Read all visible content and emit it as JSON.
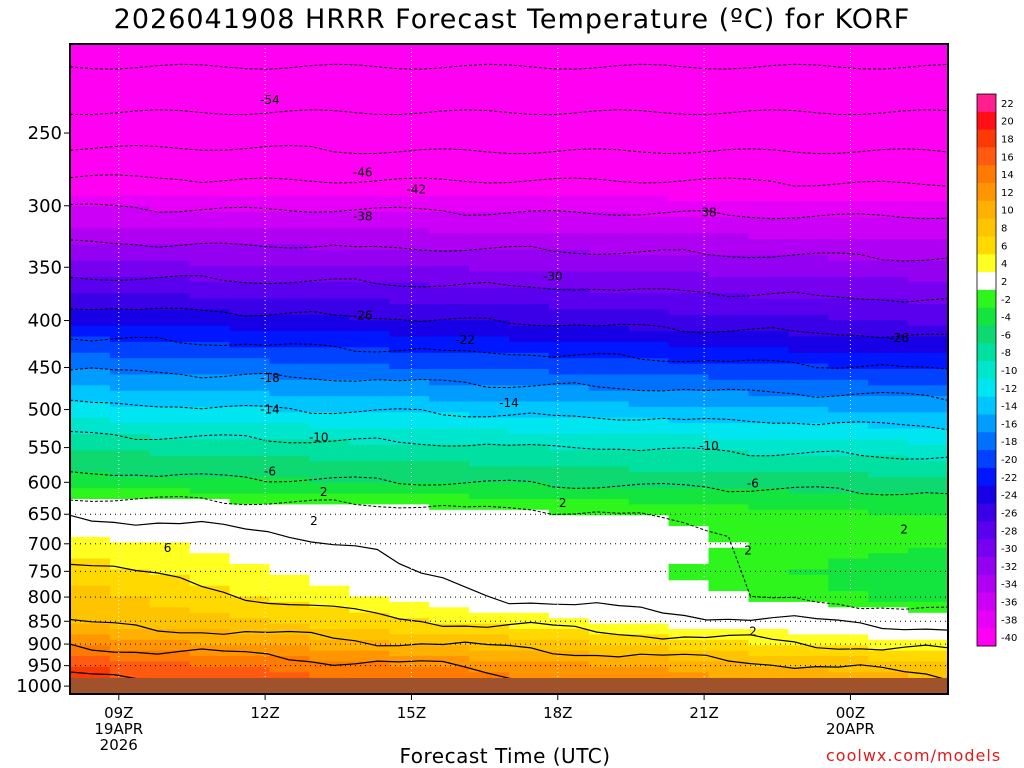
{
  "chart_data": {
    "type": "heatmap",
    "title": "2026041908 HRRR Forecast Temperature (ºC) for KORF",
    "xlabel": "Forecast Time (UTC)",
    "ylabel": "",
    "x_ticks": [
      {
        "hour": 9,
        "lines": [
          "09Z",
          "19APR",
          "2026"
        ]
      },
      {
        "hour": 12,
        "lines": [
          "12Z"
        ]
      },
      {
        "hour": 15,
        "lines": [
          "15Z"
        ]
      },
      {
        "hour": 18,
        "lines": [
          "18Z"
        ]
      },
      {
        "hour": 21,
        "lines": [
          "21Z"
        ]
      },
      {
        "hour": 24,
        "lines": [
          "00Z",
          "20APR"
        ]
      }
    ],
    "x_range_hours": [
      8,
      26
    ],
    "y_axis": "pressure (log scale)",
    "y_range": [
      1020,
      200
    ],
    "y_ticks": [
      250,
      300,
      350,
      400,
      450,
      500,
      550,
      600,
      650,
      700,
      750,
      800,
      850,
      900,
      950,
      1000
    ],
    "colorbar": {
      "levels": [
        22,
        20,
        18,
        16,
        14,
        12,
        10,
        8,
        6,
        4,
        2,
        -2,
        -4,
        -6,
        -8,
        -10,
        -12,
        -14,
        -16,
        -18,
        -20,
        -22,
        -24,
        -26,
        -28,
        -30,
        -32,
        -34,
        -36,
        -38,
        -40
      ],
      "colors": [
        "#ff1f8f",
        "#ff0f17",
        "#fb3a06",
        "#ff5a10",
        "#ff7a00",
        "#ff9500",
        "#ffb000",
        "#ffc400",
        "#ffd900",
        "#ffff22",
        "#ffffff",
        "#2ef51c",
        "#14e43e",
        "#0ed971",
        "#00e0a0",
        "#00e6cc",
        "#00e6f0",
        "#00c6ff",
        "#009cff",
        "#0070ff",
        "#0042ff",
        "#0016ff",
        "#1800e6",
        "#3a00e8",
        "#5a00ee",
        "#7800f0",
        "#9400f2",
        "#b000f4",
        "#cc00f6",
        "#e600f8",
        "#ff00f2"
      ]
    },
    "temperature_profile_start": [
      {
        "p": 1000,
        "t": 19
      },
      {
        "p": 950,
        "t": 18
      },
      {
        "p": 900,
        "t": 14
      },
      {
        "p": 850,
        "t": 10
      },
      {
        "p": 800,
        "t": 9
      },
      {
        "p": 750,
        "t": 7
      },
      {
        "p": 700,
        "t": 5
      },
      {
        "p": 650,
        "t": 2
      },
      {
        "p": 600,
        "t": -5
      },
      {
        "p": 550,
        "t": -8
      },
      {
        "p": 500,
        "t": -13
      },
      {
        "p": 450,
        "t": -18
      },
      {
        "p": 400,
        "t": -24
      },
      {
        "p": 350,
        "t": -31
      },
      {
        "p": 300,
        "t": -38
      },
      {
        "p": 250,
        "t": -48
      },
      {
        "p": 200,
        "t": -56
      }
    ],
    "temperature_profile_end": [
      {
        "p": 1000,
        "t": 11
      },
      {
        "p": 950,
        "t": 9
      },
      {
        "p": 900,
        "t": 5
      },
      {
        "p": 850,
        "t": 1
      },
      {
        "p": 800,
        "t": -5
      },
      {
        "p": 750,
        "t": -6
      },
      {
        "p": 700,
        "t": -4
      },
      {
        "p": 650,
        "t": -4
      },
      {
        "p": 600,
        "t": -7
      },
      {
        "p": 550,
        "t": -11
      },
      {
        "p": 500,
        "t": -16
      },
      {
        "p": 450,
        "t": -22
      },
      {
        "p": 400,
        "t": -28
      },
      {
        "p": 350,
        "t": -33
      },
      {
        "p": 300,
        "t": -39
      },
      {
        "p": 250,
        "t": -48
      },
      {
        "p": 200,
        "t": -56
      }
    ],
    "contour_labels": [
      {
        "text": "-54",
        "hour": 12.1,
        "p": 230
      },
      {
        "text": "-46",
        "hour": 14.0,
        "p": 276
      },
      {
        "text": "-42",
        "hour": 15.1,
        "p": 288
      },
      {
        "text": "-38",
        "hour": 14.0,
        "p": 308
      },
      {
        "text": "38",
        "hour": 21.1,
        "p": 305
      },
      {
        "text": "-30",
        "hour": 17.9,
        "p": 358
      },
      {
        "text": "-26",
        "hour": 14.0,
        "p": 395
      },
      {
        "text": "-22",
        "hour": 16.1,
        "p": 420
      },
      {
        "text": "-26",
        "hour": 25.0,
        "p": 418
      },
      {
        "text": "-18",
        "hour": 12.1,
        "p": 462
      },
      {
        "text": "-14",
        "hour": 12.1,
        "p": 500
      },
      {
        "text": "-14",
        "hour": 17.0,
        "p": 492
      },
      {
        "text": "-10",
        "hour": 13.1,
        "p": 536
      },
      {
        "text": "-10",
        "hour": 21.1,
        "p": 548
      },
      {
        "text": "-6",
        "hour": 12.1,
        "p": 584
      },
      {
        "text": "-6",
        "hour": 22.0,
        "p": 602
      },
      {
        "text": "2",
        "hour": 13.2,
        "p": 615
      },
      {
        "text": "2",
        "hour": 18.1,
        "p": 632
      },
      {
        "text": "2",
        "hour": 13.0,
        "p": 661
      },
      {
        "text": "6",
        "hour": 10.0,
        "p": 707
      },
      {
        "text": "2",
        "hour": 21.9,
        "p": 712
      },
      {
        "text": "2",
        "hour": 25.1,
        "p": 675
      },
      {
        "text": "2",
        "hour": 22.0,
        "p": 872
      }
    ]
  },
  "credit": "coolwx.com/models"
}
